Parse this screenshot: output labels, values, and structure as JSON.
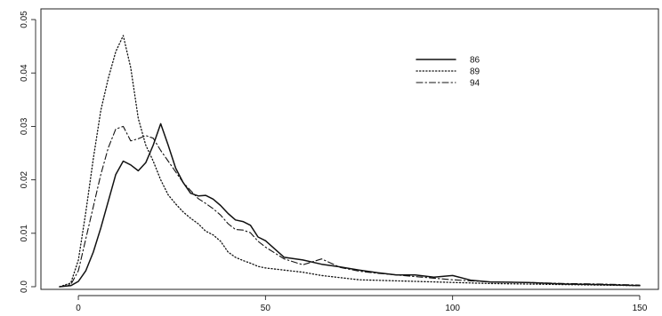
{
  "chart_data": {
    "type": "line",
    "title": "",
    "xlabel": "",
    "ylabel": "",
    "xlim": [
      -10,
      155
    ],
    "ylim": [
      -0.0005,
      0.052
    ],
    "x_ticks": [
      0,
      50,
      100,
      150
    ],
    "x_tick_labels": [
      "0",
      "50",
      "100",
      "150"
    ],
    "y_ticks": [
      0.0,
      0.01,
      0.02,
      0.03,
      0.04,
      0.05
    ],
    "y_tick_labels": [
      "0.0",
      "0.01",
      "0.02",
      "0.03",
      "0.04",
      "0.05"
    ],
    "grid": false,
    "legend_position": "top-right",
    "series": [
      {
        "name": "86",
        "line_style": "solid",
        "x": [
          -5,
          -2,
          0,
          2,
          4,
          6,
          8,
          10,
          12,
          14,
          16,
          18,
          20,
          22,
          24,
          26,
          28,
          30,
          32,
          34,
          36,
          38,
          40,
          42,
          44,
          46,
          48,
          50,
          55,
          60,
          65,
          70,
          75,
          80,
          85,
          90,
          95,
          100,
          105,
          110,
          120,
          130,
          140,
          150
        ],
        "y": [
          0.0,
          0.0002,
          0.001,
          0.003,
          0.0065,
          0.011,
          0.016,
          0.021,
          0.0235,
          0.0228,
          0.0217,
          0.0232,
          0.0265,
          0.0305,
          0.0265,
          0.0222,
          0.0195,
          0.0175,
          0.017,
          0.0171,
          0.0164,
          0.0152,
          0.0137,
          0.0125,
          0.0122,
          0.0115,
          0.0093,
          0.0086,
          0.0055,
          0.005,
          0.0042,
          0.0037,
          0.0031,
          0.0026,
          0.0022,
          0.0022,
          0.0018,
          0.0021,
          0.0012,
          0.0009,
          0.0008,
          0.0005,
          0.0004,
          0.0002
        ]
      },
      {
        "name": "89",
        "line_style": "dotted",
        "x": [
          -5,
          -2,
          0,
          2,
          4,
          6,
          8,
          10,
          12,
          14,
          16,
          18,
          20,
          22,
          24,
          26,
          28,
          30,
          32,
          34,
          36,
          38,
          40,
          42,
          44,
          46,
          48,
          50,
          55,
          60,
          65,
          70,
          75,
          80,
          85,
          90,
          95,
          100,
          105,
          110,
          120,
          130,
          140,
          150
        ],
        "y": [
          0.0,
          0.0007,
          0.005,
          0.014,
          0.024,
          0.033,
          0.039,
          0.044,
          0.047,
          0.041,
          0.0315,
          0.0265,
          0.0235,
          0.02,
          0.0172,
          0.0155,
          0.014,
          0.0128,
          0.0118,
          0.0104,
          0.0097,
          0.0085,
          0.0065,
          0.0055,
          0.0049,
          0.0044,
          0.0038,
          0.0035,
          0.0031,
          0.0027,
          0.0021,
          0.0017,
          0.0013,
          0.0012,
          0.0011,
          0.001,
          0.0009,
          0.0008,
          0.0007,
          0.0006,
          0.0005,
          0.0004,
          0.0003,
          0.0002
        ]
      },
      {
        "name": "94",
        "line_style": "dash-dot",
        "x": [
          -5,
          -2,
          0,
          2,
          4,
          6,
          8,
          10,
          12,
          14,
          16,
          18,
          20,
          22,
          24,
          26,
          28,
          30,
          32,
          34,
          36,
          38,
          40,
          42,
          44,
          46,
          48,
          50,
          55,
          60,
          65,
          70,
          75,
          80,
          85,
          90,
          95,
          100,
          105,
          110,
          120,
          130,
          140,
          150
        ],
        "y": [
          0.0,
          0.0004,
          0.003,
          0.009,
          0.015,
          0.021,
          0.026,
          0.0295,
          0.03,
          0.0273,
          0.0277,
          0.0283,
          0.0278,
          0.0255,
          0.0235,
          0.0215,
          0.0195,
          0.018,
          0.0165,
          0.0156,
          0.0146,
          0.0134,
          0.0118,
          0.0107,
          0.0106,
          0.0101,
          0.0085,
          0.0074,
          0.0052,
          0.0041,
          0.0052,
          0.0036,
          0.0029,
          0.0025,
          0.0022,
          0.0019,
          0.0016,
          0.0013,
          0.0011,
          0.0009,
          0.0008,
          0.0006,
          0.0005,
          0.0003
        ]
      }
    ]
  }
}
